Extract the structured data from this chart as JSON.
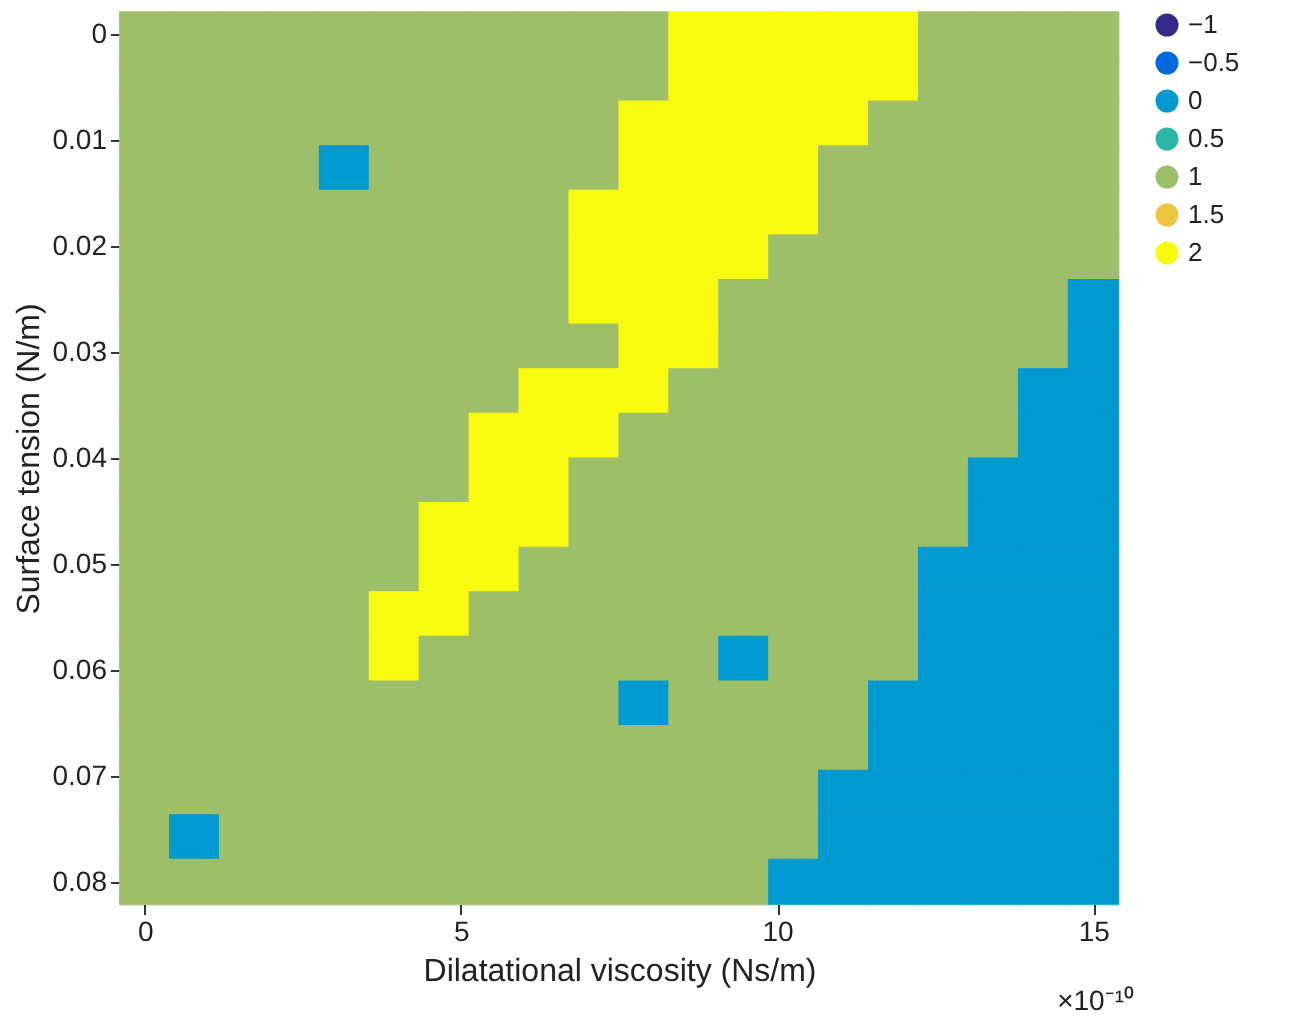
{
  "chart_data": {
    "type": "heatmap",
    "xlabel": "Dilatational viscosity (Ns/m)",
    "ylabel": "Surface tension (N/m)",
    "annotations": [
      "×10⁻¹⁰"
    ],
    "x": [
      0,
      0.789,
      1.579,
      2.368,
      3.158,
      3.947,
      4.737,
      5.526,
      6.316,
      7.105,
      7.895,
      8.684,
      9.474,
      10.263,
      11.053,
      11.842,
      12.632,
      13.421,
      14.211,
      15
    ],
    "y": [
      0,
      0.00421,
      0.00842,
      0.01263,
      0.01684,
      0.02105,
      0.02526,
      0.02947,
      0.03368,
      0.03789,
      0.04211,
      0.04632,
      0.05053,
      0.05474,
      0.05895,
      0.06316,
      0.06737,
      0.07158,
      0.07579,
      0.08
    ],
    "xlim": [
      -0.39,
      15.39
    ],
    "ylim": [
      0.0821,
      -0.0021
    ],
    "xticks": [
      0,
      5,
      10,
      15
    ],
    "yticks": [
      0,
      0.01,
      0.02,
      0.03,
      0.04,
      0.05,
      0.06,
      0.07,
      0.08
    ],
    "clim": [
      -1,
      2
    ],
    "cticks": [
      -1,
      -0.5,
      0,
      0.5,
      1,
      1.5,
      2
    ],
    "cells": [
      [
        1,
        1,
        1,
        1,
        1,
        1,
        1,
        1,
        1,
        1,
        1,
        2,
        2,
        2,
        2,
        2,
        1,
        1,
        1,
        1
      ],
      [
        1,
        1,
        1,
        1,
        1,
        1,
        1,
        1,
        1,
        1,
        1,
        2,
        2,
        2,
        2,
        2,
        1,
        1,
        1,
        1
      ],
      [
        1,
        1,
        1,
        1,
        1,
        1,
        1,
        1,
        1,
        1,
        2,
        2,
        2,
        2,
        2,
        1,
        1,
        1,
        1,
        1
      ],
      [
        1,
        1,
        1,
        1,
        0,
        1,
        1,
        1,
        1,
        1,
        2,
        2,
        2,
        2,
        1,
        1,
        1,
        1,
        1,
        1
      ],
      [
        1,
        1,
        1,
        1,
        1,
        1,
        1,
        1,
        1,
        2,
        2,
        2,
        2,
        2,
        1,
        1,
        1,
        1,
        1,
        1
      ],
      [
        1,
        1,
        1,
        1,
        1,
        1,
        1,
        1,
        1,
        2,
        2,
        2,
        2,
        1,
        1,
        1,
        1,
        1,
        1,
        1
      ],
      [
        1,
        1,
        1,
        1,
        1,
        1,
        1,
        1,
        1,
        2,
        2,
        2,
        1,
        1,
        1,
        1,
        1,
        1,
        1,
        0
      ],
      [
        1,
        1,
        1,
        1,
        1,
        1,
        1,
        1,
        1,
        1,
        2,
        2,
        1,
        1,
        1,
        1,
        1,
        1,
        1,
        0
      ],
      [
        1,
        1,
        1,
        1,
        1,
        1,
        1,
        1,
        2,
        2,
        2,
        1,
        1,
        1,
        1,
        1,
        1,
        1,
        0,
        0
      ],
      [
        1,
        1,
        1,
        1,
        1,
        1,
        1,
        2,
        2,
        2,
        1,
        1,
        1,
        1,
        1,
        1,
        1,
        1,
        0,
        0
      ],
      [
        1,
        1,
        1,
        1,
        1,
        1,
        1,
        2,
        2,
        1,
        1,
        1,
        1,
        1,
        1,
        1,
        1,
        0,
        0,
        0
      ],
      [
        1,
        1,
        1,
        1,
        1,
        1,
        2,
        2,
        2,
        1,
        1,
        1,
        1,
        1,
        1,
        1,
        1,
        0,
        0,
        0
      ],
      [
        1,
        1,
        1,
        1,
        1,
        1,
        2,
        2,
        1,
        1,
        1,
        1,
        1,
        1,
        1,
        1,
        0,
        0,
        0,
        0
      ],
      [
        1,
        1,
        1,
        1,
        1,
        2,
        2,
        1,
        1,
        1,
        1,
        1,
        1,
        1,
        1,
        1,
        0,
        0,
        0,
        0
      ],
      [
        1,
        1,
        1,
        1,
        1,
        2,
        1,
        1,
        1,
        1,
        1,
        1,
        0,
        1,
        1,
        1,
        0,
        0,
        0,
        0
      ],
      [
        1,
        1,
        1,
        1,
        1,
        1,
        1,
        1,
        1,
        1,
        0,
        1,
        1,
        1,
        1,
        0,
        0,
        0,
        0,
        0
      ],
      [
        1,
        1,
        1,
        1,
        1,
        1,
        1,
        1,
        1,
        1,
        1,
        1,
        1,
        1,
        1,
        0,
        0,
        0,
        0,
        0
      ],
      [
        1,
        1,
        1,
        1,
        1,
        1,
        1,
        1,
        1,
        1,
        1,
        1,
        1,
        1,
        0,
        0,
        0,
        0,
        0,
        0
      ],
      [
        1,
        0,
        1,
        1,
        1,
        1,
        1,
        1,
        1,
        1,
        1,
        1,
        1,
        1,
        0,
        0,
        0,
        0,
        0,
        0
      ],
      [
        1,
        1,
        1,
        1,
        1,
        1,
        1,
        1,
        1,
        1,
        1,
        1,
        1,
        0,
        0,
        0,
        0,
        0,
        0,
        0
      ]
    ]
  }
}
